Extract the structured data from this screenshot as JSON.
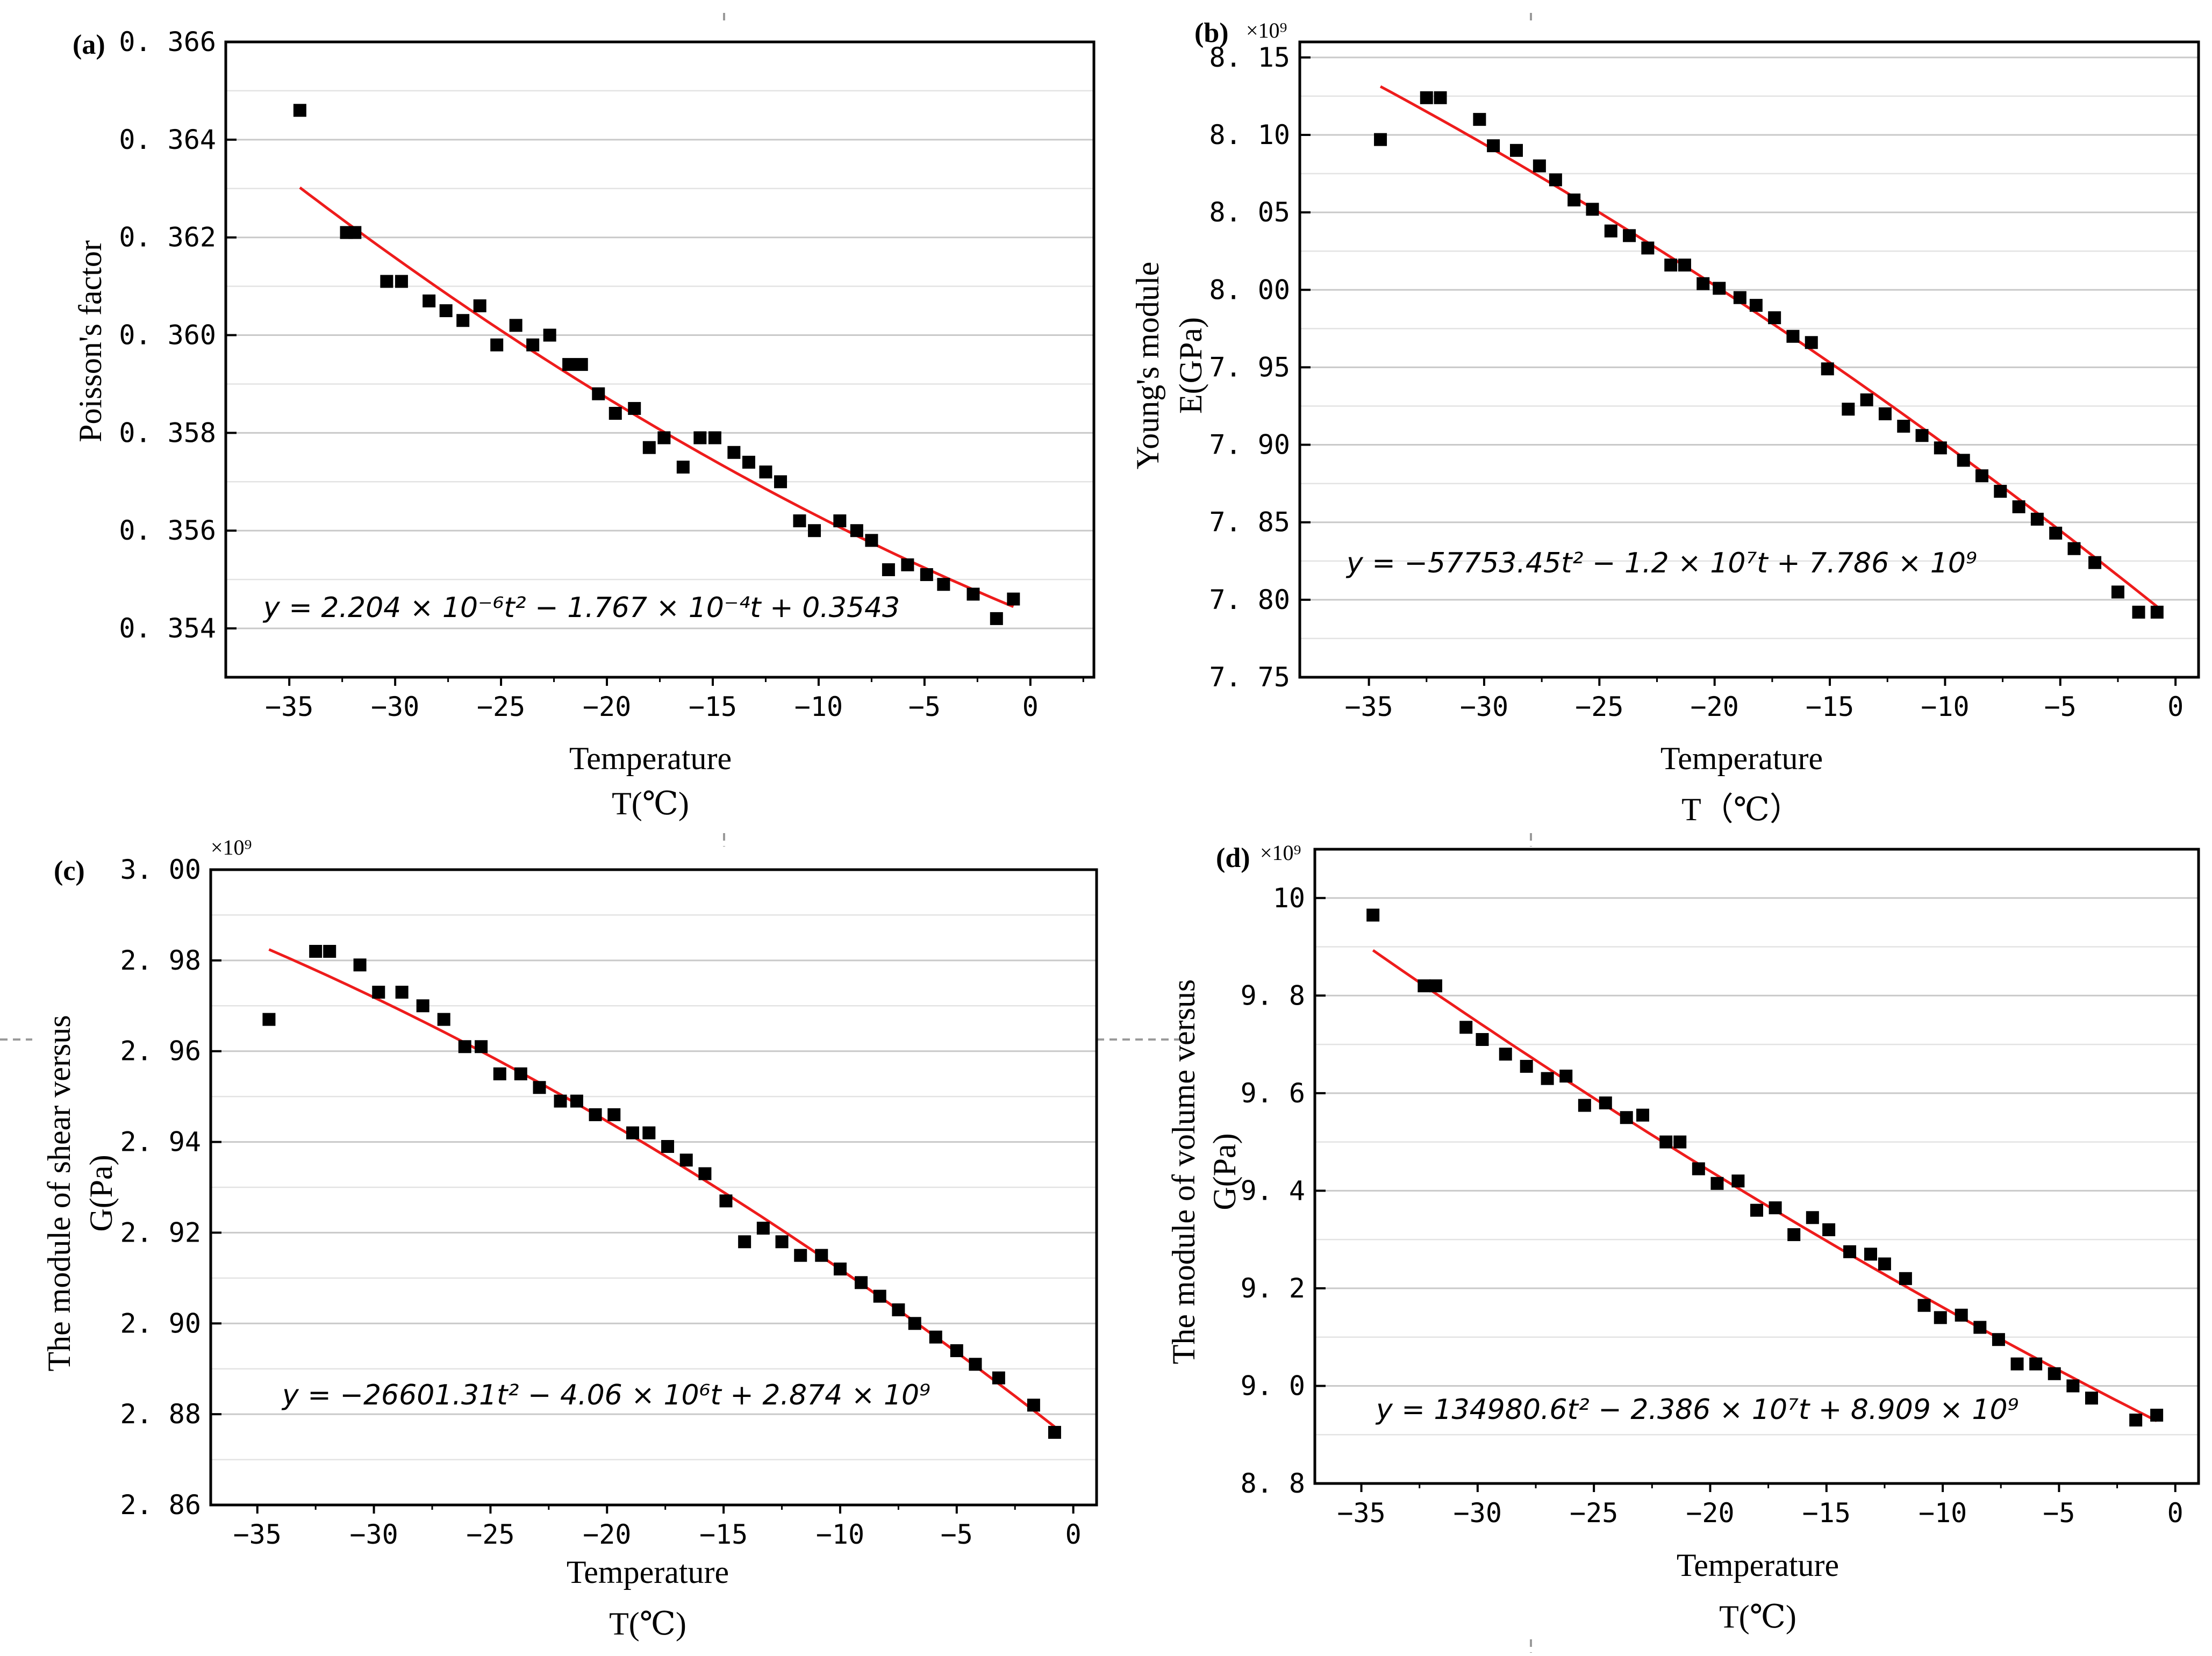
{
  "chart_data": [
    {
      "type": "scatter",
      "panel_label": "(a)",
      "xlabel": "Temperature",
      "xlabel_unit": "T(℃)",
      "ylabel": "Poisson's factor",
      "ylabel_unit": "",
      "multiplier": "",
      "equation": "y = 2.204 × 10⁻⁶t² − 1.767 × 10⁻⁴t + 0.3543",
      "xlim": [
        -38,
        3
      ],
      "ylim": [
        0.353,
        0.366
      ],
      "xticks": [
        -35,
        -30,
        -25,
        -20,
        -15,
        -10,
        -5,
        0
      ],
      "xtick_labels": [
        "−35",
        "−30",
        "−25",
        "−20",
        "−15",
        "−10",
        "−5",
        "0"
      ],
      "yticks": [
        0.354,
        0.356,
        0.358,
        0.36,
        0.362,
        0.364,
        0.366
      ],
      "ytick_labels": [
        "0. 354",
        "0. 356",
        "0. 358",
        "0. 360",
        "0. 362",
        "0. 364",
        "0. 366"
      ],
      "grid": "horizontal",
      "fit": {
        "color": "#ee1c1c",
        "coefficients": [
          2.204e-06,
          -0.0001767,
          0.3543
        ],
        "x_range": [
          -34.5,
          -0.8
        ]
      },
      "points": {
        "color": "#000000",
        "x": [
          -34.5,
          -32.3,
          -31.9,
          -30.4,
          -29.7,
          -28.4,
          -27.6,
          -26.8,
          -26.0,
          -25.2,
          -24.3,
          -23.5,
          -22.7,
          -21.8,
          -21.2,
          -20.4,
          -19.6,
          -18.7,
          -18.0,
          -17.3,
          -16.4,
          -15.6,
          -14.9,
          -14.0,
          -13.3,
          -12.5,
          -11.8,
          -10.9,
          -10.2,
          -9.0,
          -8.2,
          -7.5,
          -6.7,
          -5.8,
          -4.9,
          -4.1,
          -2.7,
          -1.6,
          -0.8
        ],
        "y": [
          0.3646,
          0.3621,
          0.3621,
          0.3611,
          0.3611,
          0.3607,
          0.3605,
          0.3603,
          0.3606,
          0.3598,
          0.3602,
          0.3598,
          0.36,
          0.3594,
          0.3594,
          0.3588,
          0.3584,
          0.3585,
          0.3577,
          0.3579,
          0.3573,
          0.3579,
          0.3579,
          0.3576,
          0.3574,
          0.3572,
          0.357,
          0.3562,
          0.356,
          0.3562,
          0.356,
          0.3558,
          0.3552,
          0.3553,
          0.3551,
          0.3549,
          0.3547,
          0.3542,
          0.3546
        ]
      }
    },
    {
      "type": "scatter",
      "panel_label": "(b)",
      "xlabel": "Temperature",
      "xlabel_unit": "T（℃）",
      "ylabel": "Young's module",
      "ylabel_unit": "E(GPa)",
      "multiplier": "×10⁹",
      "equation": "y = −57753.45t² − 1.2 × 10⁷t + 7.786 × 10⁹",
      "xlim": [
        -38,
        1
      ],
      "ylim": [
        7.75,
        8.16
      ],
      "xticks": [
        -35,
        -30,
        -25,
        -20,
        -15,
        -10,
        -5,
        0
      ],
      "xtick_labels": [
        "−35",
        "−30",
        "−25",
        "−20",
        "−15",
        "−10",
        "−5",
        "0"
      ],
      "yticks": [
        7.75,
        7.8,
        7.85,
        7.9,
        7.95,
        8.0,
        8.05,
        8.1,
        8.15
      ],
      "ytick_labels": [
        "7. 75",
        "7. 80",
        "7. 85",
        "7. 90",
        "7. 95",
        "8. 00",
        "8. 05",
        "8. 10",
        "8. 15"
      ],
      "grid": "horizontal",
      "fit": {
        "color": "#ee1c1c",
        "coefficients": [
          -0.0577535,
          -12.0,
          7786.0
        ],
        "coefficient_scale": 0.001,
        "x_range": [
          -34.5,
          -0.8
        ]
      },
      "points": {
        "color": "#000000",
        "x": [
          -34.5,
          -32.5,
          -31.9,
          -30.2,
          -29.6,
          -28.6,
          -27.6,
          -26.9,
          -26.1,
          -25.3,
          -24.5,
          -23.7,
          -22.9,
          -21.9,
          -21.3,
          -20.5,
          -19.8,
          -18.9,
          -18.2,
          -17.4,
          -16.6,
          -15.8,
          -15.1,
          -14.2,
          -13.4,
          -12.6,
          -11.8,
          -11.0,
          -10.2,
          -9.2,
          -8.4,
          -7.6,
          -6.8,
          -6.0,
          -5.2,
          -4.4,
          -3.5,
          -2.5,
          -1.6,
          -0.8
        ],
        "y": [
          8.097,
          8.124,
          8.124,
          8.11,
          8.093,
          8.09,
          8.08,
          8.071,
          8.058,
          8.052,
          8.038,
          8.035,
          8.027,
          8.016,
          8.016,
          8.004,
          8.001,
          7.995,
          7.99,
          7.982,
          7.97,
          7.966,
          7.949,
          7.923,
          7.929,
          7.92,
          7.912,
          7.906,
          7.898,
          7.89,
          7.88,
          7.87,
          7.86,
          7.852,
          7.843,
          7.833,
          7.824,
          7.805,
          7.792,
          7.792
        ]
      }
    },
    {
      "type": "scatter",
      "panel_label": "(c)",
      "xlabel": "Temperature",
      "xlabel_unit": "T(℃)",
      "ylabel": "The module of shear versus",
      "ylabel_unit": "G(Pa)",
      "multiplier": "×10⁹",
      "equation": "y = −26601.31t² − 4.06 × 10⁶t + 2.874 × 10⁹",
      "xlim": [
        -37,
        1
      ],
      "ylim": [
        2.86,
        3.0
      ],
      "xticks": [
        -35,
        -30,
        -25,
        -20,
        -15,
        -10,
        -5,
        0
      ],
      "xtick_labels": [
        "−35",
        "−30",
        "−25",
        "−20",
        "−15",
        "−10",
        "−5",
        "0"
      ],
      "yticks": [
        2.86,
        2.88,
        2.9,
        2.92,
        2.94,
        2.96,
        2.98,
        3.0
      ],
      "ytick_labels": [
        "2. 86",
        "2. 88",
        "2. 90",
        "2. 92",
        "2. 94",
        "2. 96",
        "2. 98",
        "3. 00"
      ],
      "grid": "horizontal",
      "fit": {
        "color": "#ee1c1c",
        "coefficients": [
          -0.02660131,
          -4.06,
          2874.0
        ],
        "coefficient_scale": 0.001,
        "x_range": [
          -34.5,
          -0.8
        ]
      },
      "points": {
        "color": "#000000",
        "x": [
          -34.5,
          -32.5,
          -31.9,
          -30.6,
          -29.8,
          -28.8,
          -27.9,
          -27.0,
          -26.1,
          -25.4,
          -24.6,
          -23.7,
          -22.9,
          -22.0,
          -21.3,
          -20.5,
          -19.7,
          -18.9,
          -18.2,
          -17.4,
          -16.6,
          -15.8,
          -14.9,
          -14.1,
          -13.3,
          -12.5,
          -11.7,
          -10.8,
          -10.0,
          -9.1,
          -8.3,
          -7.5,
          -6.8,
          -5.9,
          -5.0,
          -4.2,
          -3.2,
          -1.7,
          -0.8
        ],
        "y": [
          2.967,
          2.982,
          2.982,
          2.979,
          2.973,
          2.973,
          2.97,
          2.967,
          2.961,
          2.961,
          2.955,
          2.955,
          2.952,
          2.949,
          2.949,
          2.946,
          2.946,
          2.942,
          2.942,
          2.939,
          2.936,
          2.933,
          2.927,
          2.918,
          2.921,
          2.918,
          2.915,
          2.915,
          2.912,
          2.909,
          2.906,
          2.903,
          2.9,
          2.897,
          2.894,
          2.891,
          2.888,
          2.882,
          2.876
        ]
      }
    },
    {
      "type": "scatter",
      "panel_label": "(d)",
      "xlabel": "Temperature",
      "xlabel_unit": "T(℃)",
      "ylabel": "The module of volume versus",
      "ylabel_unit": "G(Pa)",
      "multiplier": "×10⁹",
      "equation": "y = 134980.6t² − 2.386 × 10⁷t + 8.909 × 10⁹",
      "xlim": [
        -37,
        1
      ],
      "ylim": [
        8.8,
        10.1
      ],
      "xticks": [
        -35,
        -30,
        -25,
        -20,
        -15,
        -10,
        -5,
        0
      ],
      "xtick_labels": [
        "−35",
        "−30",
        "−25",
        "−20",
        "−15",
        "−10",
        "−5",
        "0"
      ],
      "yticks": [
        8.8,
        9.0,
        9.2,
        9.4,
        9.6,
        9.8,
        10.0
      ],
      "ytick_labels": [
        "8. 8",
        "9. 0",
        "9. 2",
        "9. 4",
        "9. 6",
        "9. 8",
        "10"
      ],
      "grid": "horizontal",
      "fit": {
        "color": "#ee1c1c",
        "coefficients": [
          0.1349806,
          -23.86,
          8909.0
        ],
        "coefficient_scale": 0.001,
        "x_range": [
          -34.5,
          -0.8
        ]
      },
      "points": {
        "color": "#000000",
        "x": [
          -34.5,
          -32.3,
          -31.8,
          -30.5,
          -29.8,
          -28.8,
          -27.9,
          -27.0,
          -26.2,
          -25.4,
          -24.5,
          -23.6,
          -22.9,
          -21.9,
          -21.3,
          -20.5,
          -19.7,
          -18.8,
          -18.0,
          -17.2,
          -16.4,
          -15.6,
          -14.9,
          -14.0,
          -13.1,
          -12.5,
          -11.6,
          -10.8,
          -10.1,
          -9.2,
          -8.4,
          -7.6,
          -6.8,
          -6.0,
          -5.2,
          -4.4,
          -3.6,
          -1.7,
          -0.8
        ],
        "y": [
          9.965,
          9.82,
          9.82,
          9.735,
          9.71,
          9.68,
          9.655,
          9.63,
          9.635,
          9.575,
          9.58,
          9.55,
          9.555,
          9.5,
          9.5,
          9.445,
          9.415,
          9.42,
          9.36,
          9.365,
          9.31,
          9.345,
          9.32,
          9.275,
          9.27,
          9.25,
          9.22,
          9.165,
          9.14,
          9.145,
          9.12,
          9.095,
          9.045,
          9.045,
          9.025,
          9.0,
          8.975,
          8.93,
          8.94
        ]
      }
    }
  ]
}
